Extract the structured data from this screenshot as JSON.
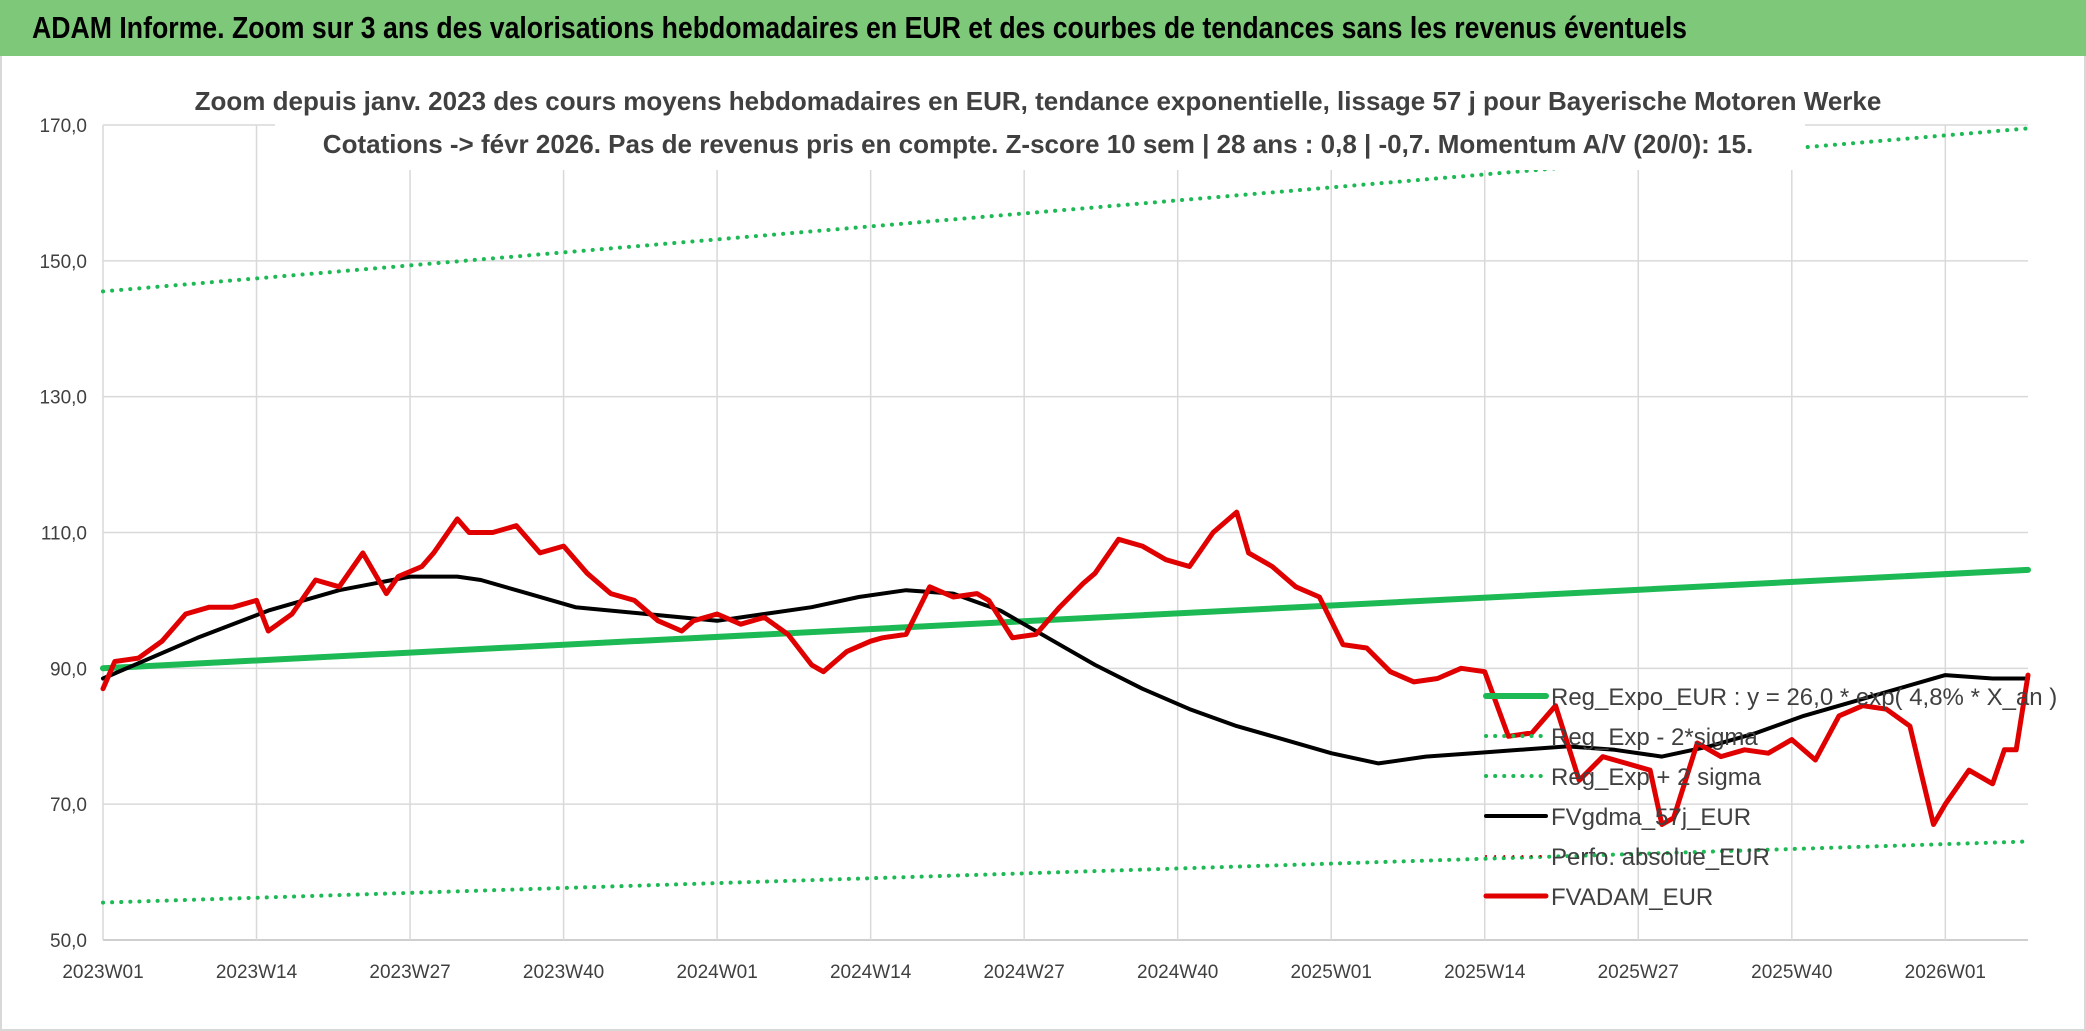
{
  "banner": {
    "title": "ADAM Informe. Zoom sur 3 ans des valorisations hebdomadaires en EUR et des courbes de tendances sans les revenus éventuels"
  },
  "chart_data": {
    "type": "line",
    "title_lines": [
      "Zoom depuis janv. 2023 des cours moyens hebdomadaires en EUR, tendance exponentielle, lissage 57 j pour Bayerische Motoren Werke",
      "Cotations -> févr 2026. Pas de revenus pris en compte. Z-score 10 sem | 28 ans : 0,8 | -0,7. Momentum A/V (20/0): 15."
    ],
    "y_ticks": [
      "50,0",
      "70,0",
      "90,0",
      "110,0",
      "130,0",
      "150,0",
      "170,0"
    ],
    "ylim": [
      50,
      170
    ],
    "x_ticks": [
      "2023W01",
      "2023W14",
      "2023W27",
      "2023W40",
      "2024W01",
      "2024W14",
      "2024W27",
      "2024W40",
      "2025W01",
      "2025W14",
      "2025W27",
      "2025W40",
      "2026W01"
    ],
    "xlim": [
      0,
      163
    ],
    "grid": true,
    "legend_position": "right",
    "series": [
      {
        "name": "Reg_Expo_EUR : y = 26,0 * exp( 4,8% *  X_an )",
        "color": "#1db954",
        "style": "solid",
        "width": 6,
        "x": [
          0,
          163
        ],
        "values": [
          90.0,
          104.5
        ]
      },
      {
        "name": "Reg_Exp - 2*sigma",
        "color": "#1db954",
        "style": "dotted",
        "width": 4,
        "x": [
          0,
          163
        ],
        "values": [
          55.5,
          64.5
        ]
      },
      {
        "name": "Reg_Exp + 2 sigma",
        "color": "#1db954",
        "style": "dotted",
        "width": 4,
        "x": [
          0,
          163
        ],
        "values": [
          145.5,
          169.5
        ]
      },
      {
        "name": "FVgdma_57j_EUR",
        "color": "#000000",
        "style": "solid",
        "width": 4,
        "x": [
          0,
          8,
          14,
          20,
          26,
          30,
          32,
          36,
          40,
          46,
          52,
          56,
          60,
          64,
          68,
          72,
          76,
          80,
          84,
          88,
          92,
          96,
          100,
          104,
          108,
          112,
          116,
          120,
          124,
          128,
          132,
          136,
          140,
          144,
          148,
          152,
          156,
          160,
          163
        ],
        "values": [
          88.5,
          94.5,
          98.5,
          101.5,
          103.5,
          103.5,
          103.0,
          101.0,
          99.0,
          98.0,
          97.0,
          98.0,
          99.0,
          100.5,
          101.5,
          101.0,
          98.5,
          94.5,
          90.5,
          87.0,
          84.0,
          81.5,
          79.5,
          77.5,
          76.0,
          77.0,
          77.5,
          78.0,
          78.5,
          78.0,
          77.0,
          78.5,
          80.5,
          83.0,
          85.0,
          87.0,
          89.0,
          88.5,
          88.5
        ]
      },
      {
        "name": "Perfo. absolue_EUR",
        "color": "#c00000",
        "style": "dotted",
        "width": 2,
        "x": [],
        "values": []
      },
      {
        "name": "FVADAM_EUR",
        "color": "#e00000",
        "style": "solid",
        "width": 5,
        "x": [
          0,
          1,
          3,
          5,
          7,
          9,
          11,
          13,
          14,
          16,
          18,
          20,
          22,
          24,
          25,
          27,
          28,
          30,
          31,
          33,
          35,
          37,
          39,
          41,
          43,
          45,
          47,
          49,
          50,
          52,
          54,
          56,
          58,
          60,
          61,
          63,
          65,
          66,
          68,
          70,
          72,
          74,
          75,
          77,
          79,
          81,
          83,
          84,
          86,
          88,
          90,
          92,
          94,
          96,
          97,
          99,
          101,
          103,
          105,
          107,
          109,
          111,
          113,
          115,
          117,
          119,
          121,
          123,
          125,
          127,
          129,
          131,
          132,
          133,
          135,
          137,
          139,
          141,
          143,
          145,
          147,
          149,
          151,
          153,
          155,
          156,
          158,
          160,
          161,
          162,
          163
        ],
        "values": [
          87.0,
          91.0,
          91.5,
          94.0,
          98.0,
          99.0,
          99.0,
          100.0,
          95.5,
          98.0,
          103.0,
          102.0,
          107.0,
          101.0,
          103.5,
          105.0,
          107.0,
          112.0,
          110.0,
          110.0,
          111.0,
          107.0,
          108.0,
          104.0,
          101.0,
          100.0,
          97.0,
          95.5,
          97.0,
          98.0,
          96.5,
          97.5,
          95.0,
          90.5,
          89.5,
          92.5,
          94.0,
          94.5,
          95.0,
          102.0,
          100.5,
          101.0,
          100.0,
          94.5,
          95.0,
          99.0,
          102.5,
          104.0,
          109.0,
          108.0,
          106.0,
          105.0,
          110.0,
          113.0,
          107.0,
          105.0,
          102.0,
          100.5,
          93.5,
          93.0,
          89.5,
          88.0,
          88.5,
          90.0,
          89.5,
          80.0,
          80.5,
          84.5,
          73.5,
          77.0,
          76.0,
          75.0,
          67.0,
          68.0,
          79.0,
          77.0,
          78.0,
          77.5,
          79.5,
          76.5,
          83.0,
          84.5,
          84.0,
          81.5,
          67.0,
          70.0,
          75.0,
          73.0,
          78.0,
          78.0,
          89.0
        ]
      }
    ]
  }
}
